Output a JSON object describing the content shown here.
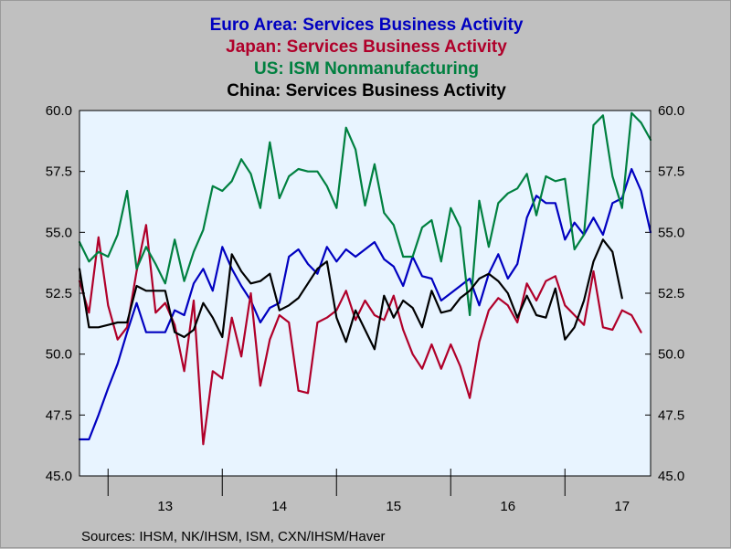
{
  "titles": [
    {
      "text": "Euro Area: Services Business Activity",
      "color": "#0000c0"
    },
    {
      "text": "Japan: Services Business Activity",
      "color": "#b0002a"
    },
    {
      "text": "US: ISM Nonmanufacturing",
      "color": "#008040"
    },
    {
      "text": "China: Services Business Activity",
      "color": "#000000"
    }
  ],
  "source": "Sources:  IHSM, NK/IHSM, ISM, CXN/IHSM/Haver",
  "chart_data": {
    "type": "line",
    "title": "Euro Area: Services Business Activity / Japan: Services Business Activity / US: ISM Nonmanufacturing / China: Services Business Activity",
    "xlabel": "",
    "ylabel": "",
    "x_start": "2012-10",
    "x_end": "2017-10",
    "x_tick_labels": [
      "13",
      "14",
      "15",
      "16",
      "17"
    ],
    "ylim": [
      45.0,
      60.0
    ],
    "y_ticks": [
      "45.0",
      "47.5",
      "50.0",
      "52.5",
      "55.0",
      "57.5",
      "60.0"
    ],
    "y_axis_left_and_right": true,
    "grid": false,
    "plot_background": "#e8f4ff",
    "series": [
      {
        "name": "Euro Area: Services Business Activity",
        "color": "#0000c0",
        "values": [
          46.5,
          46.5,
          47.5,
          48.6,
          49.6,
          50.9,
          52.1,
          50.9,
          50.9,
          50.9,
          51.8,
          51.6,
          52.9,
          53.5,
          52.6,
          54.4,
          53.5,
          52.8,
          52.2,
          51.3,
          51.9,
          52.1,
          54.0,
          54.3,
          53.7,
          53.3,
          54.4,
          53.8,
          54.3,
          54.0,
          54.3,
          54.6,
          53.9,
          53.6,
          52.8,
          54.0,
          53.2,
          53.1,
          52.2,
          52.5,
          52.8,
          53.1,
          52.0,
          53.3,
          54.1,
          53.1,
          53.7,
          55.6,
          56.5,
          56.2,
          56.2,
          54.7,
          55.4,
          54.9,
          55.6,
          54.9,
          56.2,
          56.4,
          57.6,
          56.7,
          55.0
        ]
      },
      {
        "name": "Japan: Services Business Activity",
        "color": "#b0002a",
        "values": [
          53.0,
          51.7,
          54.8,
          52.0,
          50.6,
          51.1,
          53.4,
          55.3,
          51.7,
          52.1,
          51.2,
          49.3,
          52.2,
          46.3,
          49.3,
          49.0,
          51.5,
          49.9,
          52.5,
          48.7,
          50.6,
          51.6,
          51.3,
          48.5,
          48.4,
          51.3,
          51.5,
          51.8,
          52.6,
          51.4,
          52.2,
          51.6,
          51.4,
          52.4,
          51.0,
          50.0,
          49.4,
          50.4,
          49.4,
          50.4,
          49.5,
          48.2,
          50.5,
          51.8,
          52.3,
          52.0,
          51.3,
          52.9,
          52.2,
          53.0,
          53.2,
          52.0,
          51.6,
          51.2,
          53.4,
          51.1,
          51.0,
          51.8,
          51.6,
          50.9
        ]
      },
      {
        "name": "US: ISM Nonmanufacturing",
        "color": "#008040",
        "values": [
          54.6,
          53.8,
          54.2,
          54.0,
          54.9,
          56.7,
          53.5,
          54.4,
          53.7,
          52.9,
          54.7,
          53.0,
          54.2,
          55.1,
          56.9,
          56.7,
          57.1,
          58.0,
          57.4,
          56.0,
          58.7,
          56.4,
          57.3,
          57.6,
          57.5,
          57.5,
          56.9,
          56.0,
          59.3,
          58.4,
          56.1,
          57.8,
          55.8,
          55.3,
          54.0,
          54.0,
          55.2,
          55.5,
          53.8,
          56.0,
          55.2,
          51.6,
          56.3,
          54.4,
          56.2,
          56.6,
          56.8,
          57.4,
          55.7,
          57.3,
          57.1,
          57.2,
          54.3,
          54.9,
          59.4,
          59.8,
          57.3,
          56.0,
          59.9,
          59.5,
          58.8
        ]
      },
      {
        "name": "China: Services Business Activity",
        "color": "#000000",
        "values": [
          53.5,
          51.1,
          51.1,
          51.2,
          51.3,
          51.3,
          52.8,
          52.6,
          52.6,
          52.6,
          50.9,
          50.7,
          51.0,
          52.1,
          51.5,
          50.7,
          54.1,
          53.4,
          52.9,
          53.0,
          53.3,
          51.8,
          52.0,
          52.3,
          52.9,
          53.5,
          53.8,
          51.5,
          50.5,
          51.8,
          51.0,
          50.2,
          52.4,
          51.5,
          52.2,
          51.9,
          51.1,
          52.6,
          51.7,
          51.8,
          52.3,
          52.6,
          53.1,
          53.3,
          53.0,
          52.5,
          51.5,
          52.4,
          51.6,
          51.5,
          52.7,
          50.6,
          51.1,
          52.2,
          53.8,
          54.7,
          54.2,
          52.3
        ]
      }
    ]
  }
}
